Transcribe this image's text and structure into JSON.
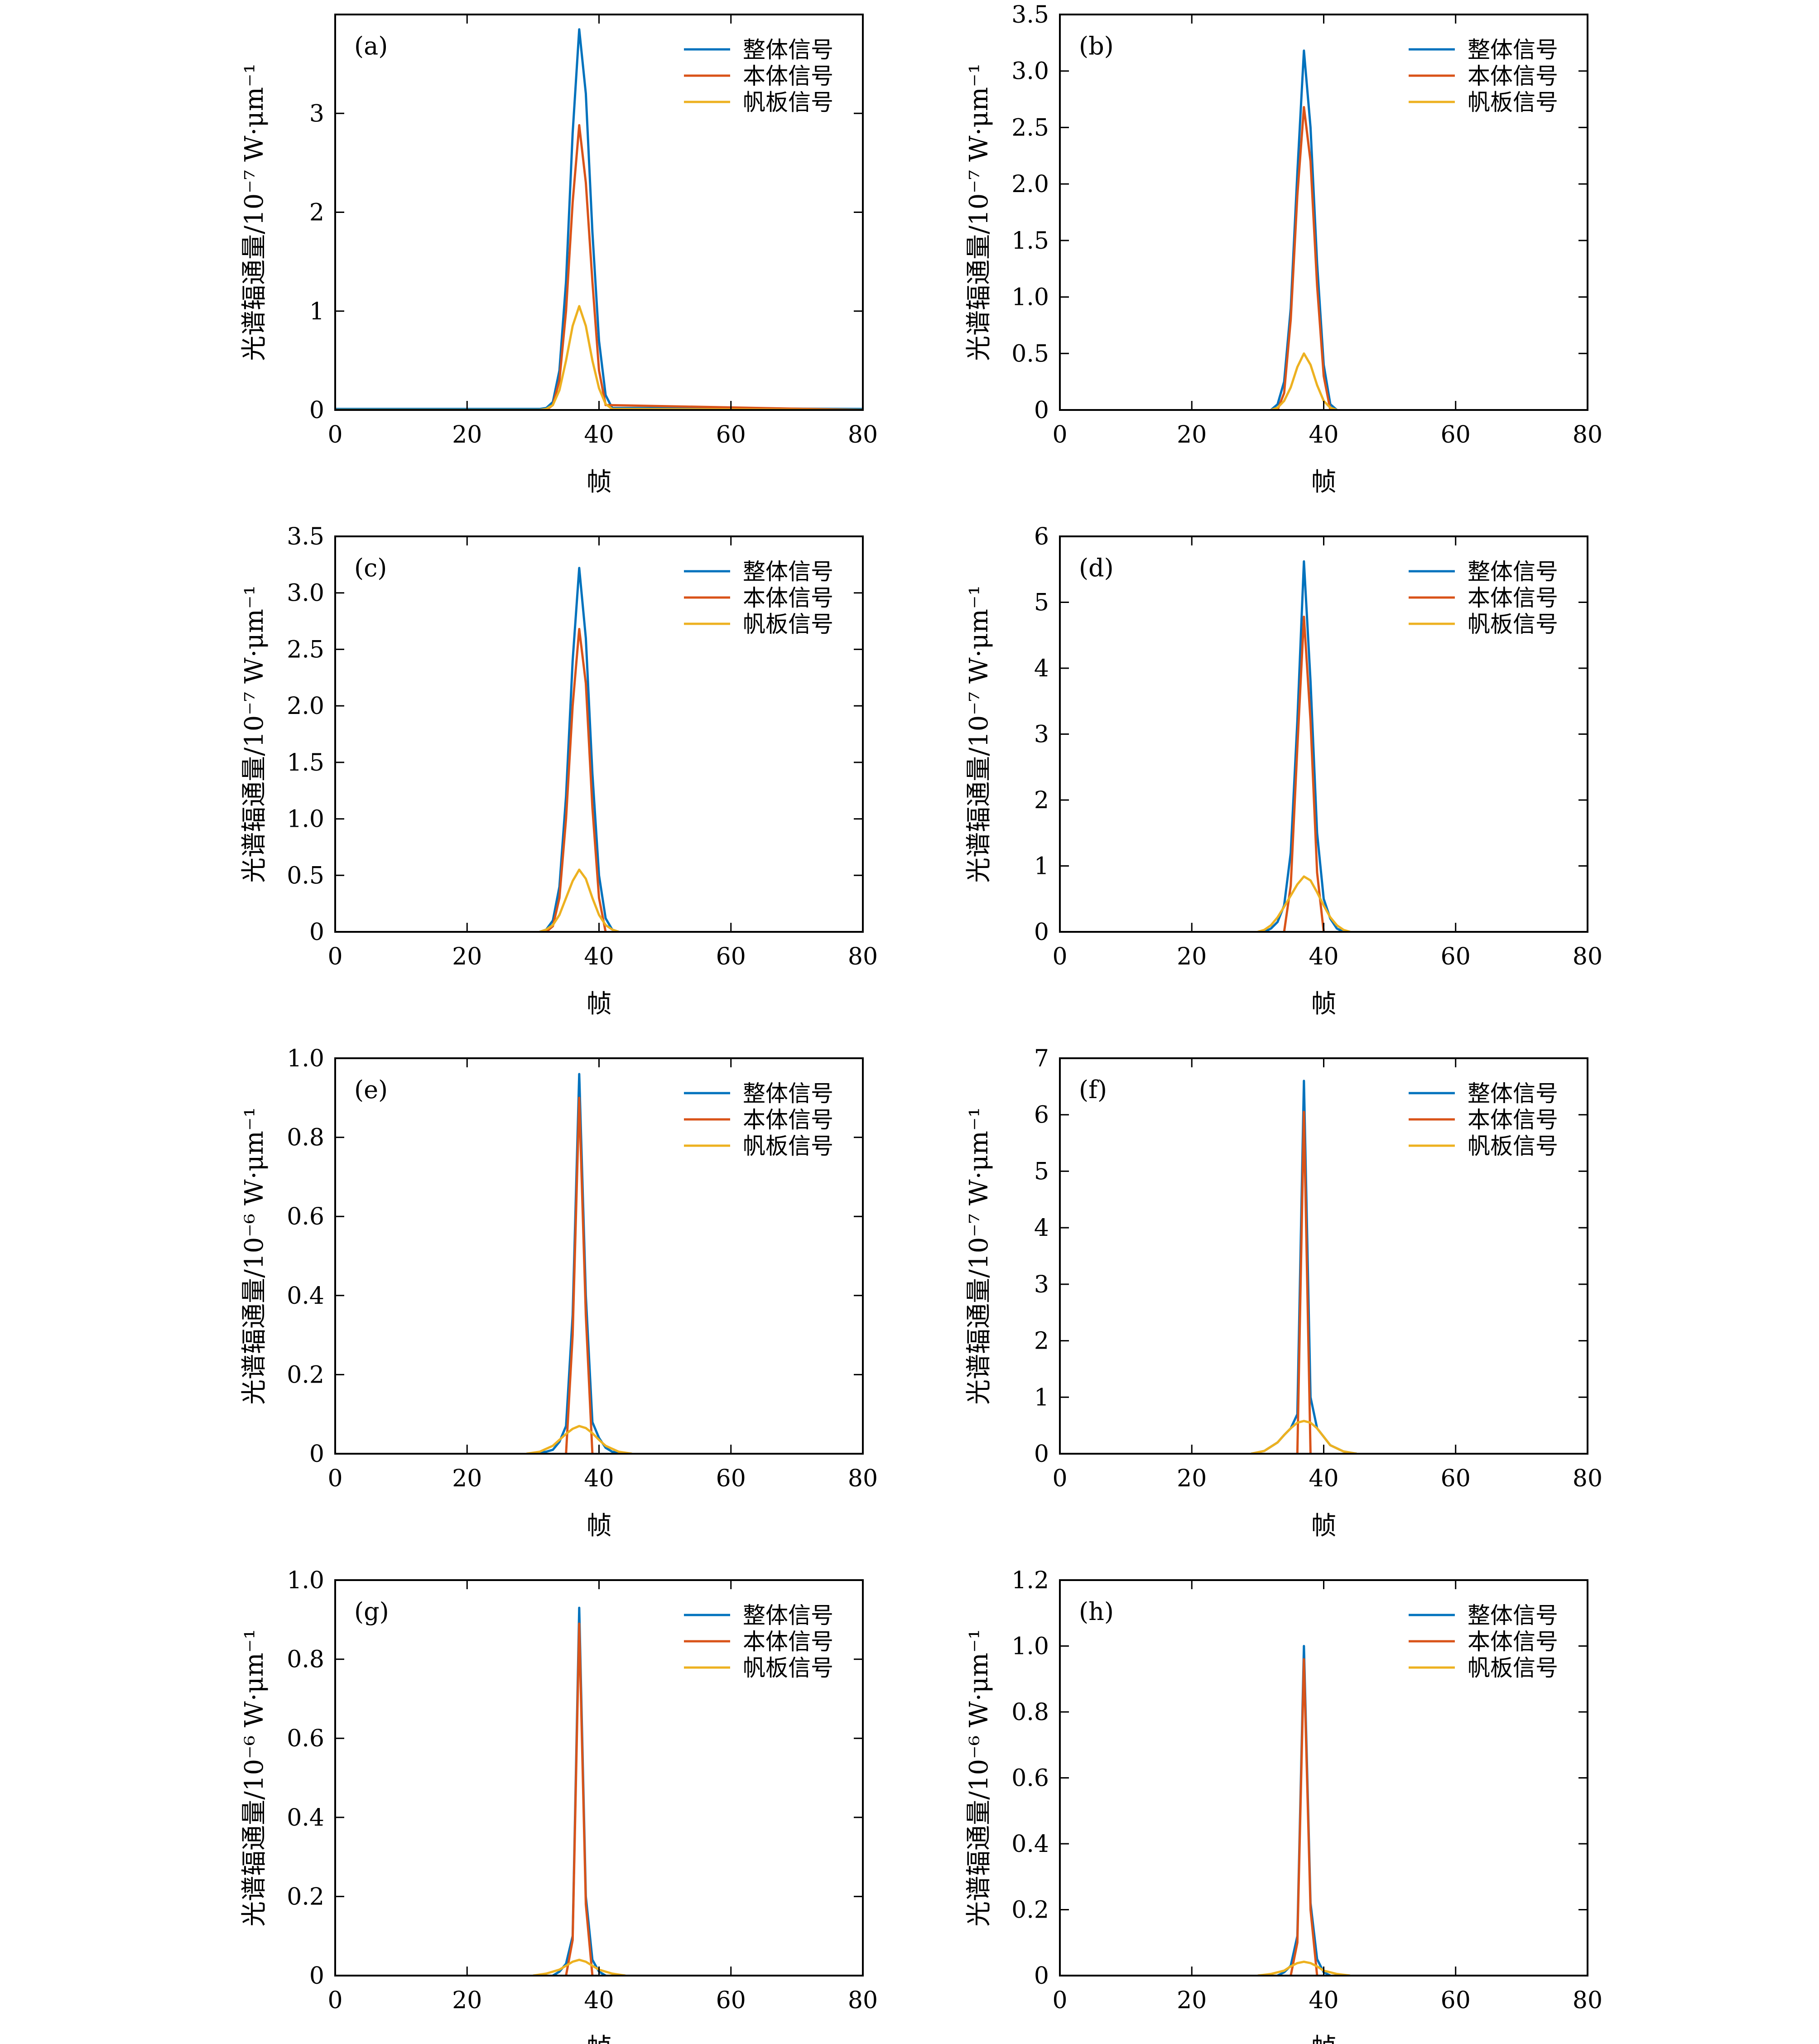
{
  "figure": {
    "xlabel": "帧",
    "legend_labels": [
      "整体信号",
      "本体信号",
      "帆板信号"
    ],
    "colors": {
      "total": "#0072bd",
      "body": "#d95319",
      "panel": "#edb120"
    }
  },
  "chart_data": [
    {
      "panel_label": "(a)",
      "type": "line",
      "ylabel": "光谱辐通量/10⁻⁷ W·μm⁻¹",
      "xlim": [
        0,
        80
      ],
      "ylim": [
        0,
        4.0
      ],
      "xticks": [
        "0",
        "20",
        "40",
        "60",
        "80"
      ],
      "yticks": [
        "0",
        "1",
        "2",
        "3"
      ],
      "ytick_values": [
        0,
        1,
        2,
        3
      ],
      "legend": "top-right",
      "grid": false,
      "series": [
        {
          "name": "整体信号",
          "x": [
            0,
            31,
            32,
            33,
            34,
            35,
            36,
            37,
            38,
            39,
            40,
            41,
            42,
            80
          ],
          "y": [
            0.01,
            0.01,
            0.02,
            0.08,
            0.4,
            1.3,
            2.8,
            3.85,
            3.2,
            1.8,
            0.7,
            0.15,
            0.02,
            0.01
          ]
        },
        {
          "name": "本体信号",
          "x": [
            0,
            32,
            33,
            34,
            35,
            36,
            37,
            38,
            39,
            40,
            41,
            80
          ],
          "y": [
            0,
            0,
            0.05,
            0.3,
            1.0,
            2.1,
            2.88,
            2.3,
            1.3,
            0.4,
            0.05,
            0
          ]
        },
        {
          "name": "帆板信号",
          "x": [
            0,
            31,
            32,
            33,
            34,
            35,
            36,
            37,
            38,
            39,
            40,
            41,
            42,
            80
          ],
          "y": [
            0,
            0,
            0.01,
            0.05,
            0.2,
            0.5,
            0.85,
            1.05,
            0.85,
            0.5,
            0.22,
            0.06,
            0.01,
            0
          ]
        }
      ]
    },
    {
      "panel_label": "(b)",
      "type": "line",
      "ylabel": "光谱辐通量/10⁻⁷ W·μm⁻¹",
      "xlim": [
        0,
        80
      ],
      "ylim": [
        0,
        3.5
      ],
      "xticks": [
        "0",
        "20",
        "40",
        "60",
        "80"
      ],
      "yticks": [
        "0",
        "0.5",
        "1.0",
        "1.5",
        "2.0",
        "2.5",
        "3.0",
        "3.5"
      ],
      "ytick_values": [
        0,
        0.5,
        1.0,
        1.5,
        2.0,
        2.5,
        3.0,
        3.5
      ],
      "legend": "top-right",
      "grid": false,
      "series": [
        {
          "name": "整体信号",
          "x": [
            32,
            33,
            34,
            35,
            36,
            37,
            38,
            39,
            40,
            41,
            42
          ],
          "y": [
            0,
            0.05,
            0.25,
            0.9,
            2.1,
            3.18,
            2.5,
            1.3,
            0.4,
            0.05,
            0
          ]
        },
        {
          "name": "本体信号",
          "x": [
            33,
            34,
            35,
            36,
            37,
            38,
            39,
            40,
            41
          ],
          "y": [
            0,
            0.15,
            0.8,
            1.9,
            2.68,
            2.2,
            1.1,
            0.3,
            0
          ]
        },
        {
          "name": "帆板信号",
          "x": [
            32,
            33,
            34,
            35,
            36,
            37,
            38,
            39,
            40,
            41,
            42
          ],
          "y": [
            0,
            0.02,
            0.08,
            0.2,
            0.38,
            0.5,
            0.4,
            0.22,
            0.08,
            0.02,
            0
          ]
        }
      ]
    },
    {
      "panel_label": "(c)",
      "type": "line",
      "ylabel": "光谱辐通量/10⁻⁷ W·μm⁻¹",
      "xlim": [
        0,
        80
      ],
      "ylim": [
        0,
        3.5
      ],
      "xticks": [
        "0",
        "20",
        "40",
        "60",
        "80"
      ],
      "yticks": [
        "0",
        "0.5",
        "1.0",
        "1.5",
        "2.0",
        "2.5",
        "3.0",
        "3.5"
      ],
      "ytick_values": [
        0,
        0.5,
        1.0,
        1.5,
        2.0,
        2.5,
        3.0,
        3.5
      ],
      "legend": "top-right",
      "grid": false,
      "series": [
        {
          "name": "整体信号",
          "x": [
            31,
            32,
            33,
            34,
            35,
            36,
            37,
            38,
            39,
            40,
            41,
            42,
            43
          ],
          "y": [
            0,
            0.02,
            0.1,
            0.4,
            1.2,
            2.4,
            3.22,
            2.6,
            1.4,
            0.5,
            0.12,
            0.02,
            0
          ]
        },
        {
          "name": "本体信号",
          "x": [
            32,
            33,
            34,
            35,
            36,
            37,
            38,
            39,
            40,
            41
          ],
          "y": [
            0,
            0.05,
            0.3,
            1.0,
            2.0,
            2.68,
            2.2,
            1.1,
            0.3,
            0
          ]
        },
        {
          "name": "帆板信号",
          "x": [
            31,
            32,
            33,
            34,
            35,
            36,
            37,
            38,
            39,
            40,
            41,
            42,
            43
          ],
          "y": [
            0,
            0.02,
            0.06,
            0.15,
            0.3,
            0.45,
            0.55,
            0.47,
            0.3,
            0.15,
            0.06,
            0.02,
            0
          ]
        }
      ]
    },
    {
      "panel_label": "(d)",
      "type": "line",
      "ylabel": "光谱辐通量/10⁻⁷ W·μm⁻¹",
      "xlim": [
        0,
        80
      ],
      "ylim": [
        0,
        6
      ],
      "xticks": [
        "0",
        "20",
        "40",
        "60",
        "80"
      ],
      "yticks": [
        "0",
        "1",
        "2",
        "3",
        "4",
        "5",
        "6"
      ],
      "ytick_values": [
        0,
        1,
        2,
        3,
        4,
        5,
        6
      ],
      "legend": "top-right",
      "grid": false,
      "series": [
        {
          "name": "整体信号",
          "x": [
            31,
            32,
            33,
            34,
            35,
            36,
            37,
            38,
            39,
            40,
            41,
            42,
            43
          ],
          "y": [
            0,
            0.05,
            0.15,
            0.4,
            1.2,
            3.2,
            5.62,
            3.8,
            1.5,
            0.5,
            0.2,
            0.05,
            0
          ]
        },
        {
          "name": "本体信号",
          "x": [
            34,
            35,
            36,
            37,
            38,
            39,
            40
          ],
          "y": [
            0,
            0.7,
            2.8,
            4.78,
            3.2,
            0.9,
            0
          ]
        },
        {
          "name": "帆板信号",
          "x": [
            30,
            31,
            32,
            33,
            34,
            35,
            36,
            37,
            38,
            39,
            40,
            41,
            42,
            43,
            44
          ],
          "y": [
            0,
            0.03,
            0.1,
            0.22,
            0.38,
            0.55,
            0.72,
            0.84,
            0.78,
            0.6,
            0.4,
            0.22,
            0.1,
            0.03,
            0
          ]
        }
      ]
    },
    {
      "panel_label": "(e)",
      "type": "line",
      "ylabel": "光谱辐通量/10⁻⁶ W·μm⁻¹",
      "xlim": [
        0,
        80
      ],
      "ylim": [
        0,
        1.0
      ],
      "xticks": [
        "0",
        "20",
        "40",
        "60",
        "80"
      ],
      "yticks": [
        "0",
        "0.2",
        "0.4",
        "0.6",
        "0.8",
        "1.0"
      ],
      "ytick_values": [
        0,
        0.2,
        0.4,
        0.6,
        0.8,
        1.0
      ],
      "legend": "top-right",
      "grid": false,
      "series": [
        {
          "name": "整体信号",
          "x": [
            30,
            32,
            33,
            34,
            35,
            36,
            37,
            38,
            39,
            40,
            41,
            42,
            44
          ],
          "y": [
            0,
            0.005,
            0.01,
            0.03,
            0.07,
            0.35,
            0.96,
            0.4,
            0.08,
            0.04,
            0.015,
            0.005,
            0
          ]
        },
        {
          "name": "本体信号",
          "x": [
            35,
            36,
            37,
            38,
            39
          ],
          "y": [
            0,
            0.3,
            0.9,
            0.35,
            0
          ]
        },
        {
          "name": "帆板信号",
          "x": [
            29,
            31,
            33,
            34,
            35,
            36,
            37,
            38,
            39,
            40,
            41,
            43,
            45
          ],
          "y": [
            0,
            0.005,
            0.02,
            0.035,
            0.05,
            0.063,
            0.07,
            0.065,
            0.052,
            0.035,
            0.02,
            0.005,
            0
          ]
        }
      ]
    },
    {
      "panel_label": "(f)",
      "type": "line",
      "ylabel": "光谱辐通量/10⁻⁷ W·μm⁻¹",
      "xlim": [
        0,
        80
      ],
      "ylim": [
        0,
        7
      ],
      "xticks": [
        "0",
        "20",
        "40",
        "60",
        "80"
      ],
      "yticks": [
        "0",
        "1",
        "2",
        "3",
        "4",
        "5",
        "6",
        "7"
      ],
      "ytick_values": [
        0,
        1,
        2,
        3,
        4,
        5,
        6,
        7
      ],
      "legend": "top-right",
      "grid": false,
      "series": [
        {
          "name": "整体信号",
          "x": [
            29,
            31,
            33,
            34,
            35,
            36,
            37,
            38,
            39,
            40,
            41,
            43,
            45
          ],
          "y": [
            0,
            0.05,
            0.2,
            0.33,
            0.45,
            0.7,
            6.6,
            1.0,
            0.45,
            0.3,
            0.15,
            0.04,
            0
          ]
        },
        {
          "name": "本体信号",
          "x": [
            36,
            37,
            38
          ],
          "y": [
            0,
            6.05,
            0
          ]
        },
        {
          "name": "帆板信号",
          "x": [
            29,
            31,
            33,
            34,
            35,
            36,
            37,
            38,
            39,
            40,
            41,
            43,
            45
          ],
          "y": [
            0,
            0.05,
            0.2,
            0.33,
            0.45,
            0.55,
            0.58,
            0.55,
            0.45,
            0.3,
            0.15,
            0.04,
            0
          ]
        }
      ]
    },
    {
      "panel_label": "(g)",
      "type": "line",
      "ylabel": "光谱辐通量/10⁻⁶ W·μm⁻¹",
      "xlim": [
        0,
        80
      ],
      "ylim": [
        0,
        1.0
      ],
      "xticks": [
        "0",
        "20",
        "40",
        "60",
        "80"
      ],
      "yticks": [
        "0",
        "0.2",
        "0.4",
        "0.6",
        "0.8",
        "1.0"
      ],
      "ytick_values": [
        0,
        0.2,
        0.4,
        0.6,
        0.8,
        1.0
      ],
      "legend": "top-right",
      "grid": false,
      "series": [
        {
          "name": "整体信号",
          "x": [
            33,
            34,
            35,
            36,
            37,
            38,
            39,
            40,
            41
          ],
          "y": [
            0,
            0.01,
            0.03,
            0.1,
            0.93,
            0.2,
            0.04,
            0.01,
            0
          ]
        },
        {
          "name": "本体信号",
          "x": [
            35,
            36,
            37,
            38,
            39
          ],
          "y": [
            0,
            0.09,
            0.89,
            0.18,
            0
          ]
        },
        {
          "name": "帆板信号",
          "x": [
            30,
            32,
            34,
            35,
            36,
            37,
            38,
            39,
            40,
            42,
            44
          ],
          "y": [
            0,
            0.005,
            0.015,
            0.025,
            0.035,
            0.04,
            0.035,
            0.025,
            0.015,
            0.005,
            0
          ]
        }
      ]
    },
    {
      "panel_label": "(h)",
      "type": "line",
      "ylabel": "光谱辐通量/10⁻⁶ W·μm⁻¹",
      "xlim": [
        0,
        80
      ],
      "ylim": [
        0,
        1.2
      ],
      "xticks": [
        "0",
        "20",
        "40",
        "60",
        "80"
      ],
      "yticks": [
        "0",
        "0.2",
        "0.4",
        "0.6",
        "0.8",
        "1.0",
        "1.2"
      ],
      "ytick_values": [
        0,
        0.2,
        0.4,
        0.6,
        0.8,
        1.0,
        1.2
      ],
      "legend": "top-right",
      "grid": false,
      "series": [
        {
          "name": "整体信号",
          "x": [
            33,
            34,
            35,
            36,
            37,
            38,
            39,
            40,
            41
          ],
          "y": [
            0,
            0.01,
            0.03,
            0.12,
            1.0,
            0.22,
            0.05,
            0.01,
            0
          ]
        },
        {
          "name": "本体信号",
          "x": [
            35,
            36,
            37,
            38,
            39
          ],
          "y": [
            0,
            0.1,
            0.96,
            0.2,
            0
          ]
        },
        {
          "name": "帆板信号",
          "x": [
            30,
            32,
            34,
            35,
            36,
            37,
            38,
            39,
            40,
            42,
            44
          ],
          "y": [
            0,
            0.005,
            0.015,
            0.028,
            0.038,
            0.042,
            0.038,
            0.028,
            0.015,
            0.005,
            0
          ]
        }
      ]
    }
  ]
}
